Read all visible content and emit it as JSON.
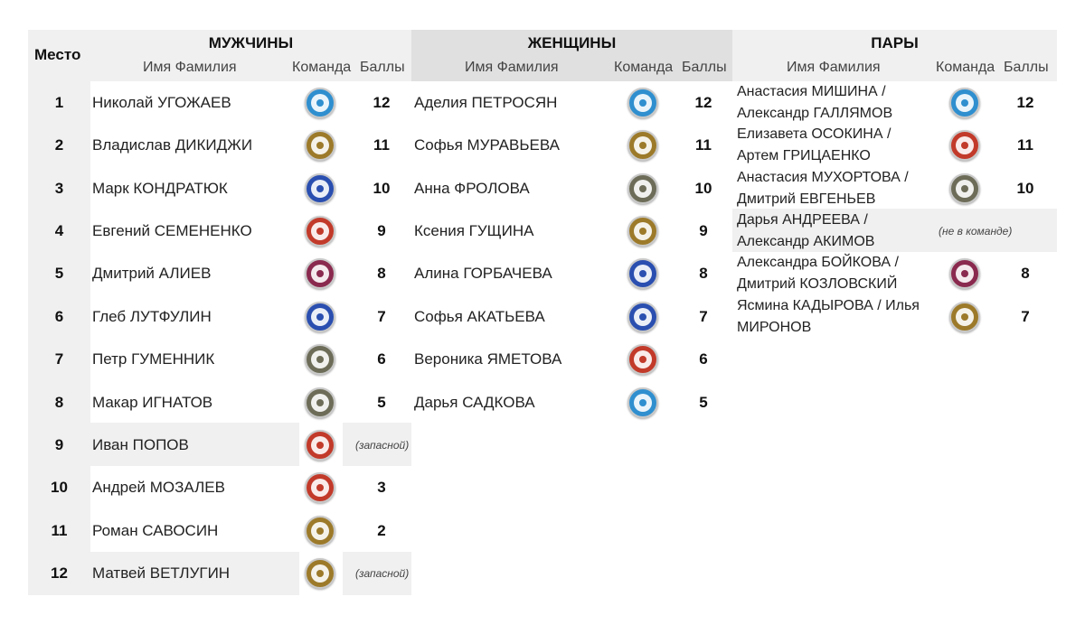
{
  "headers": {
    "place": "Место",
    "men": "МУЖЧИНЫ",
    "women": "ЖЕНЩИНЫ",
    "pairs": "ПАРЫ",
    "name_col": "Имя Фамилия",
    "team_col": "Команда",
    "score_col": "Баллы"
  },
  "team_colors": {
    "blue-light": "#2f8fcf",
    "blue-dark": "#2a4fb0",
    "gold": "#9c7a2a",
    "red": "#c23a2a",
    "gray": "#6c6c58",
    "maroon": "#8a2a4e"
  },
  "places": [
    "1",
    "2",
    "3",
    "4",
    "5",
    "6",
    "7",
    "8",
    "9",
    "10",
    "11",
    "12"
  ],
  "men": [
    {
      "name": "Николай УГОЖАЕВ",
      "team": "blue-light",
      "score": "12"
    },
    {
      "name": "Владислав ДИКИДЖИ",
      "team": "gold",
      "score": "11"
    },
    {
      "name": "Марк КОНДРАТЮК",
      "team": "blue-dark",
      "score": "10"
    },
    {
      "name": "Евгений СЕМЕНЕНКО",
      "team": "red",
      "score": "9"
    },
    {
      "name": "Дмитрий АЛИЕВ",
      "team": "maroon",
      "score": "8"
    },
    {
      "name": "Глеб ЛУТФУЛИН",
      "team": "blue-dark",
      "score": "7"
    },
    {
      "name": "Петр ГУМЕННИК",
      "team": "gray",
      "score": "6"
    },
    {
      "name": "Макар ИГНАТОВ",
      "team": "gray",
      "score": "5"
    },
    {
      "name": "Иван ПОПОВ",
      "team": "red",
      "note": "(запасной)"
    },
    {
      "name": "Андрей МОЗАЛЕВ",
      "team": "red",
      "score": "3"
    },
    {
      "name": "Роман САВОСИН",
      "team": "gold",
      "score": "2"
    },
    {
      "name": "Матвей ВЕТЛУГИН",
      "team": "gold",
      "note": "(запасной)"
    }
  ],
  "women": [
    {
      "name": "Аделия ПЕТРОСЯН",
      "team": "blue-light",
      "score": "12"
    },
    {
      "name": "Софья МУРАВЬЕВА",
      "team": "gold",
      "score": "11"
    },
    {
      "name": "Анна ФРОЛОВА",
      "team": "gray",
      "score": "10"
    },
    {
      "name": "Ксения ГУЩИНА",
      "team": "gold",
      "score": "9"
    },
    {
      "name": "Алина ГОРБАЧЕВА",
      "team": "blue-dark",
      "score": "8"
    },
    {
      "name": "Софья АКАТЬЕВА",
      "team": "blue-dark",
      "score": "7"
    },
    {
      "name": "Вероника ЯМЕТОВА",
      "team": "red",
      "score": "6"
    },
    {
      "name": "Дарья САДКОВА",
      "team": "blue-light",
      "score": "5"
    }
  ],
  "pairs": [
    {
      "name": "Анастасия МИШИНА / Александр ГАЛЛЯМОВ",
      "team": "blue-light",
      "score": "12"
    },
    {
      "name": "Елизавета ОСОКИНА / Артем ГРИЦАЕНКО",
      "team": "red",
      "score": "11"
    },
    {
      "name": "Анастасия МУХОРТОВА / Дмитрий ЕВГЕНЬЕВ",
      "team": "gray",
      "score": "10"
    },
    {
      "name": "Дарья АНДРЕЕВА / Александр АКИМОВ",
      "team": "",
      "note": "(не в команде)"
    },
    {
      "name": "Александра БОЙКОВА / Дмитрий КОЗЛОВСКИЙ",
      "team": "maroon",
      "score": "8"
    },
    {
      "name": "Ясмина КАДЫРОВА / Илья МИРОНОВ",
      "team": "gold",
      "score": "7"
    }
  ]
}
